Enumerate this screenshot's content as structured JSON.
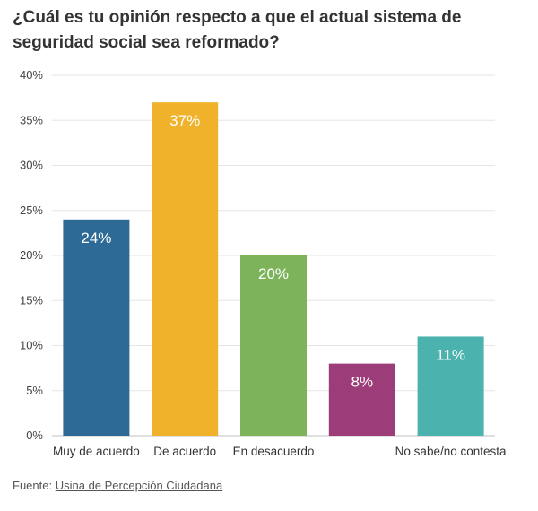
{
  "chart_data": {
    "type": "bar",
    "title": "¿Cuál es tu opinión respecto a que el actual sistema de seguridad social sea reformado?",
    "categories": [
      "Muy de acuerdo",
      "De acuerdo",
      "En desacuerdo",
      "",
      "No sabe/no contesta"
    ],
    "values": [
      24,
      37,
      20,
      8,
      11
    ],
    "data_labels": [
      "24%",
      "37%",
      "20%",
      "8%",
      "11%"
    ],
    "colors": [
      "#2d6a96",
      "#f0b22b",
      "#7db35a",
      "#9c3d79",
      "#4bb2ae"
    ],
    "ylim": [
      0,
      40
    ],
    "yticks": [
      0,
      5,
      10,
      15,
      20,
      25,
      30,
      35,
      40
    ],
    "ytick_labels": [
      "0%",
      "5%",
      "10%",
      "15%",
      "20%",
      "25%",
      "30%",
      "35%",
      "40%"
    ],
    "grid": true
  },
  "footer": {
    "prefix": "Fuente:",
    "source_link": "Usina de Percepción Ciudadana"
  }
}
